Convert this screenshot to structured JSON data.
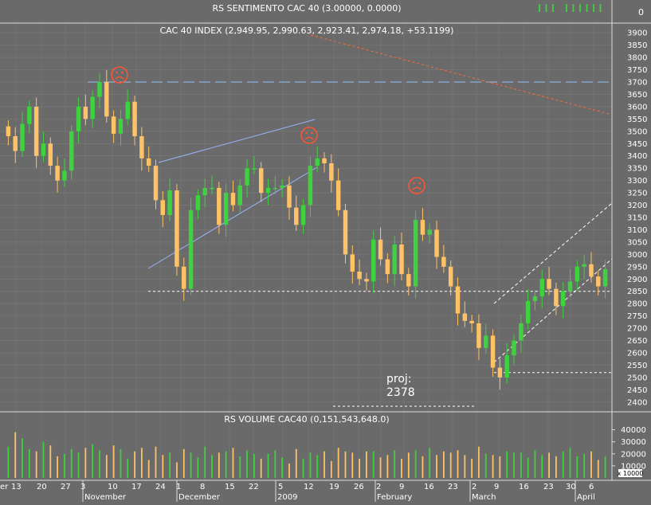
{
  "colors": {
    "background": "#6a6a6a",
    "grid": "#7a7a7a",
    "up": "#3fd13f",
    "down": "#ffc266",
    "trendline": "#9ab4ff",
    "dotted": "#ffffff",
    "redline": "#ff6a33",
    "resistance": "#8ab0dd",
    "frown": "#ff5533",
    "text": "#ffffff"
  },
  "chart_data": [
    {
      "type": "bar",
      "title": "RS SENTIMENTO CAC 40 (3.00000, 0.0000)",
      "ylabel_value": "0",
      "values": [
        1,
        1,
        1,
        0,
        1,
        1,
        1,
        1,
        1,
        1
      ]
    },
    {
      "type": "candlestick",
      "title": "CAC 40 INDEX (2,949.95, 2,990.63, 2,923.41, 2,974.18, +53.1199)",
      "ylim": [
        2380,
        3920
      ],
      "y_ticks": [
        2400,
        2450,
        2500,
        2550,
        2600,
        2650,
        2700,
        2750,
        2800,
        2850,
        2900,
        2950,
        3000,
        3050,
        3100,
        3150,
        3200,
        3250,
        3300,
        3350,
        3400,
        3450,
        3500,
        3550,
        3600,
        3650,
        3700,
        3750,
        3800,
        3850,
        3900
      ],
      "closes": [
        3480,
        3420,
        3530,
        3600,
        3400,
        3450,
        3360,
        3300,
        3340,
        3500,
        3600,
        3550,
        3640,
        3700,
        3560,
        3490,
        3550,
        3620,
        3480,
        3390,
        3360,
        3220,
        3160,
        3260,
        2950,
        2860,
        3180,
        3240,
        3270,
        3270,
        3120,
        3250,
        3200,
        3280,
        3350,
        3350,
        3250,
        3270,
        3270,
        3280,
        3190,
        3120,
        3200,
        3360,
        3390,
        3370,
        3300,
        3180,
        3000,
        2930,
        2900,
        2890,
        3060,
        2980,
        2920,
        3040,
        2920,
        2870,
        3140,
        3080,
        3100,
        2990,
        2950,
        2870,
        2760,
        2730,
        2720,
        2620,
        2670,
        2540,
        2500,
        2590,
        2650,
        2720,
        2810,
        2830,
        2900,
        2860,
        2790,
        2850,
        2890,
        2950,
        2960,
        2910,
        2870,
        2940
      ],
      "resistance_level": 3700,
      "support_level": 2850,
      "lower_support": 2520,
      "annotations": [
        {
          "text": "proj:",
          "value": 2378
        },
        {
          "text": "2378",
          "value": 2378
        }
      ],
      "frown_markers": 3
    },
    {
      "type": "bar",
      "title": "RS VOLUME CAC40 (0,151,543,648.0)",
      "ylim": [
        0,
        45000
      ],
      "y_ticks": [
        10000,
        20000,
        30000,
        40000
      ],
      "y_tick_labels": [
        "10000",
        "20000",
        "30000",
        "40000"
      ],
      "scale_label": "x 10000",
      "values": [
        26000,
        38000,
        33000,
        24000,
        22000,
        30000,
        27000,
        18000,
        20000,
        24000,
        21000,
        25000,
        28000,
        23000,
        19000,
        27000,
        24000,
        16000,
        22000,
        25000,
        15000,
        26000,
        19000,
        21000,
        13000,
        24000,
        21000,
        17000,
        26000,
        19000,
        21000,
        22000,
        25000,
        18000,
        23000,
        20000,
        16000,
        20000,
        23000,
        17000,
        12000,
        24000,
        16000,
        21000,
        19000,
        22000,
        14000,
        25000,
        22000,
        21000,
        16000,
        22000,
        22000,
        17000,
        19000,
        23000,
        16000,
        21000,
        23000,
        18000,
        25000,
        19000,
        22000,
        21000,
        23000,
        19000,
        16000,
        26000,
        20000,
        19000,
        18000,
        22000,
        21000,
        21000,
        17000,
        23000,
        19000,
        21000,
        18000,
        22000,
        25000,
        18000,
        20000,
        22000,
        15000,
        18000
      ]
    }
  ],
  "x_axis": {
    "day_labels": [
      "13",
      "20",
      "27",
      "3",
      "10",
      "17",
      "24",
      "1",
      "8",
      "15",
      "22",
      "5",
      "12",
      "19",
      "26",
      "2",
      "9",
      "16",
      "23",
      "2",
      "9",
      "16",
      "23",
      "30",
      "6"
    ],
    "month_labels": [
      "November",
      "December",
      "2009",
      "February",
      "March",
      "April"
    ],
    "left_partial_label": "er"
  }
}
